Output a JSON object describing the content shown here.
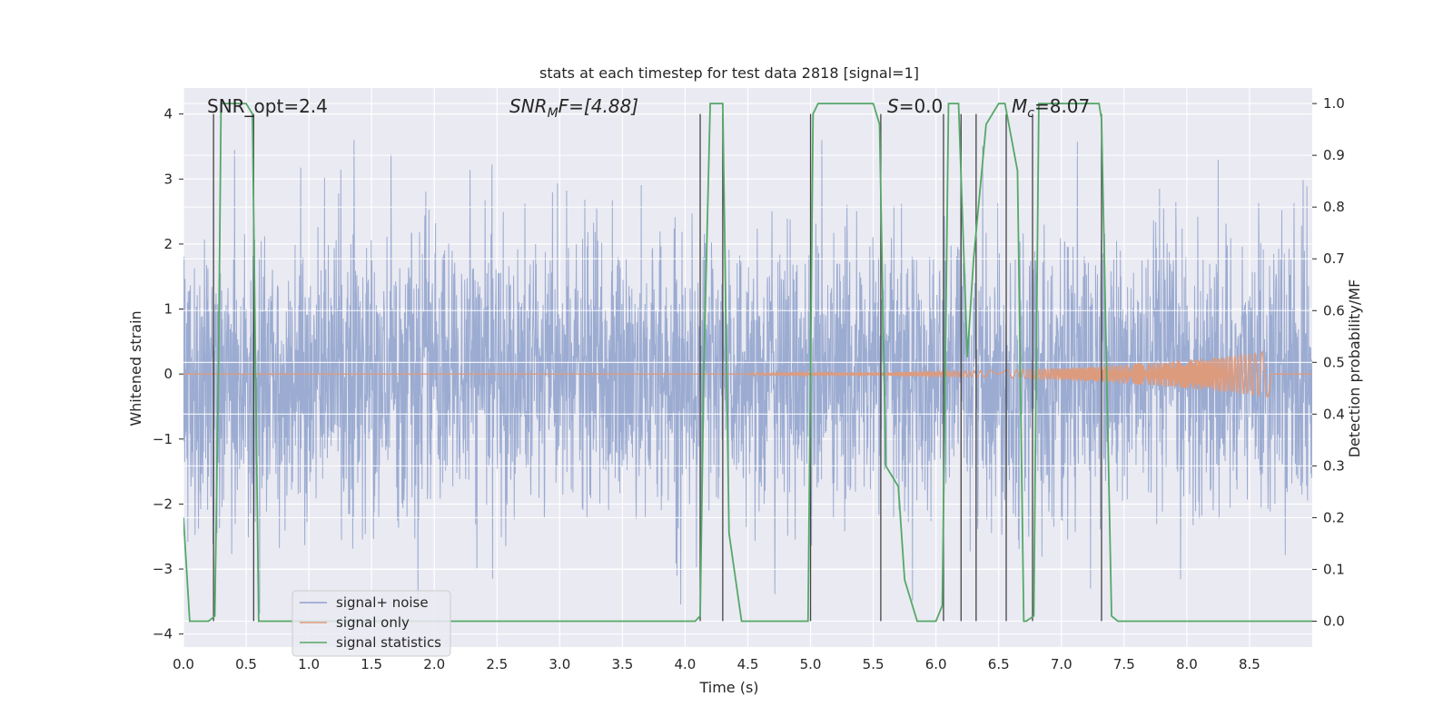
{
  "chart_data": {
    "type": "line",
    "title": "stats at each timestep for test data 2818 [signal=1]",
    "xlabel": "Time (s)",
    "ylabel": "Whitened strain",
    "y2label": "Detection probability/MF",
    "xlim": [
      0,
      9.0
    ],
    "ylim": [
      -4.2,
      4.4
    ],
    "y2lim": [
      -0.05,
      1.03
    ],
    "xticks": [
      0.0,
      0.5,
      1.0,
      1.5,
      2.0,
      2.5,
      3.0,
      3.5,
      4.0,
      4.5,
      5.0,
      5.5,
      6.0,
      6.5,
      7.0,
      7.5,
      8.0,
      8.5
    ],
    "xtick_labels": [
      "0.0",
      "0.5",
      "1.0",
      "1.5",
      "2.0",
      "2.5",
      "3.0",
      "3.5",
      "4.0",
      "4.5",
      "5.0",
      "5.5",
      "6.0",
      "6.5",
      "7.0",
      "7.5",
      "8.0",
      "8.5"
    ],
    "yticks": [
      -4,
      -3,
      -2,
      -1,
      0,
      1,
      2,
      3,
      4
    ],
    "ytick_labels": [
      "−4",
      "−3",
      "−2",
      "−1",
      "0",
      "1",
      "2",
      "3",
      "4"
    ],
    "y2ticks": [
      0.0,
      0.1,
      0.2,
      0.3,
      0.4,
      0.5,
      0.6,
      0.7,
      0.8,
      0.9,
      1.0
    ],
    "y2tick_labels": [
      "0.0",
      "0.1",
      "0.2",
      "0.3",
      "0.4",
      "0.5",
      "0.6",
      "0.7",
      "0.8",
      "0.9",
      "1.0"
    ],
    "grid": true,
    "legend_position": "lower-left",
    "legend": [
      "signal+ noise",
      "signal only",
      "signal statistics"
    ],
    "annotations": {
      "snr_opt": "SNR_opt=2.4",
      "snr_mf_base": "SNR",
      "snr_mf_sub": "M",
      "snr_mf_rest": "F=[4.88]",
      "s_sym": "S",
      "s_value": "=0.0",
      "mc_base": "M",
      "mc_sub": "c",
      "mc_value": "=8.07"
    },
    "series": [
      {
        "name": "signal+ noise",
        "axis": "left",
        "color": "#8da0cb",
        "description": "whitened noise with approximately unit variance sampled across 0–9 s",
        "range": [
          -3.9,
          3.6
        ]
      },
      {
        "name": "signal only",
        "axis": "left",
        "color": "#dd9b7e",
        "description": "chirp waveform with amplitude growing to about 0.35 near t = 8.65 s then ending",
        "envelope": {
          "t_start": 4.5,
          "t_end": 8.67,
          "amp_start": 0.02,
          "amp_end": 0.36
        }
      },
      {
        "name": "signal statistics",
        "axis": "right",
        "color": "#55a868",
        "x": [
          0.0,
          0.05,
          0.15,
          0.2,
          0.25,
          0.28,
          0.3,
          0.5,
          0.55,
          0.6,
          0.65,
          4.08,
          4.12,
          4.15,
          4.2,
          4.3,
          4.35,
          4.45,
          4.8,
          4.98,
          5.02,
          5.06,
          5.1,
          5.5,
          5.55,
          5.6,
          5.7,
          5.75,
          5.85,
          6.0,
          6.05,
          6.07,
          6.1,
          6.18,
          6.25,
          6.3,
          6.4,
          6.5,
          6.55,
          6.65,
          6.7,
          6.72,
          6.78,
          6.82,
          7.3,
          7.32,
          7.4,
          7.45,
          9.0
        ],
        "y": [
          0.2,
          0.0,
          0.0,
          0.0,
          0.01,
          0.5,
          1.0,
          1.0,
          0.98,
          0.0,
          0.0,
          0.0,
          0.01,
          0.5,
          1.0,
          1.0,
          0.17,
          0.0,
          0.0,
          0.0,
          0.98,
          1.0,
          1.0,
          1.0,
          0.96,
          0.3,
          0.26,
          0.08,
          0.0,
          0.0,
          0.03,
          0.4,
          1.0,
          1.0,
          0.51,
          0.7,
          0.96,
          1.0,
          1.0,
          0.87,
          0.0,
          0.0,
          0.01,
          1.0,
          1.0,
          0.97,
          0.01,
          0.0,
          0.0
        ]
      }
    ],
    "vertical_markers": [
      0.24,
      0.56,
      4.12,
      4.3,
      5.0,
      5.56,
      6.06,
      6.2,
      6.32,
      6.56,
      6.77,
      7.32
    ]
  }
}
